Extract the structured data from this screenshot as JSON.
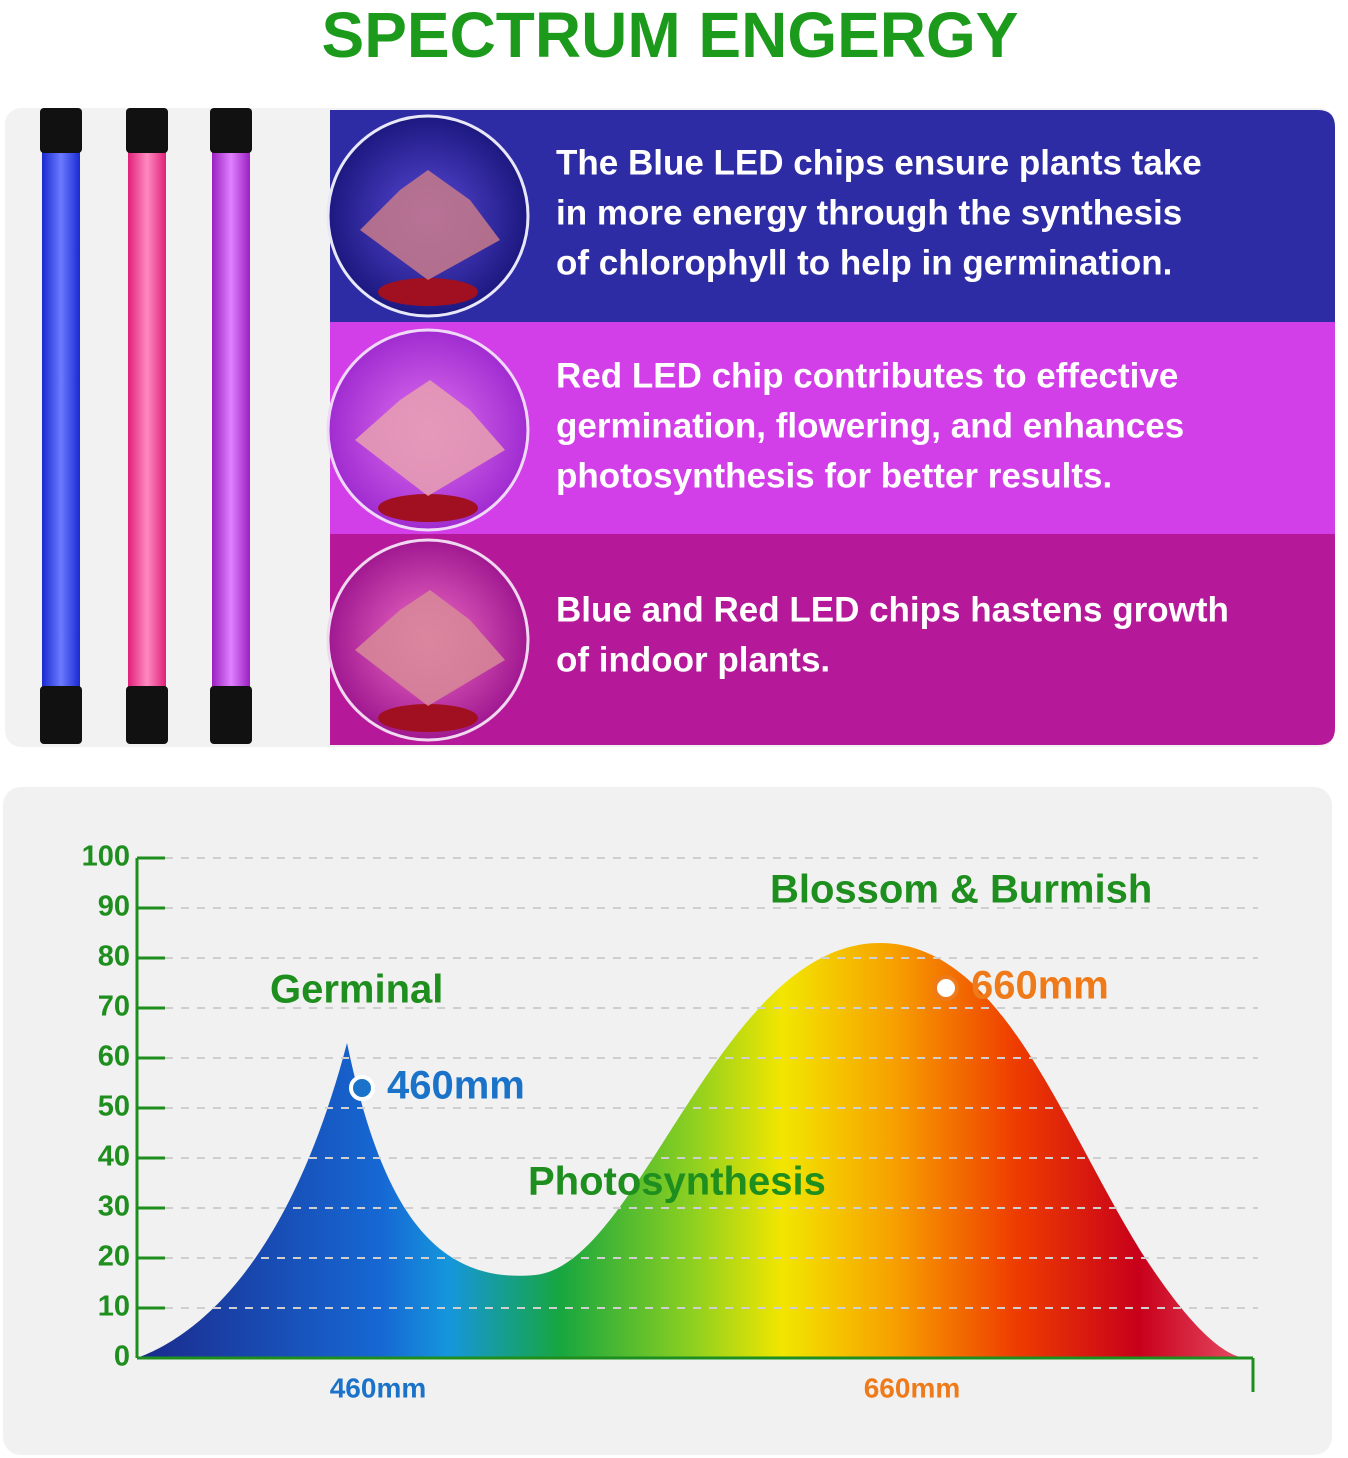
{
  "title": "SPECTRUM ENGERGY",
  "panels": [
    {
      "lines": [
        "The Blue LED chips ensure plants take",
        "in more energy through the synthesis",
        "of chlorophyll to help in germination."
      ]
    },
    {
      "lines": [
        "Red LED chip contributes to effective",
        "germination, flowering, and enhances",
        "photosynthesis for better results."
      ]
    },
    {
      "lines": [
        "Blue and Red LED chips hastens growth",
        "of indoor plants."
      ]
    }
  ],
  "chart_data": {
    "type": "area",
    "ylim": [
      0,
      100
    ],
    "yticks": [
      0,
      10,
      20,
      30,
      40,
      50,
      60,
      70,
      80,
      90,
      100
    ],
    "grid": true,
    "x_labels": [
      "460mm",
      "660mm"
    ],
    "annotations": [
      "Germinal",
      "Photosynthesis",
      "Blossom & Burmish"
    ],
    "markers": [
      {
        "label": "460mm",
        "value": 54,
        "color": "#1a73c8"
      },
      {
        "label": "660mm",
        "value": 74,
        "color": "#ee7a1a"
      }
    ]
  }
}
